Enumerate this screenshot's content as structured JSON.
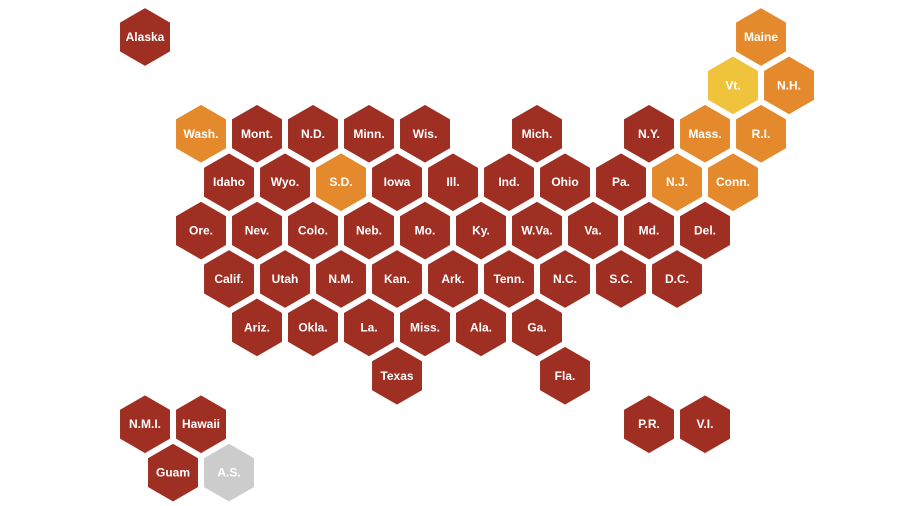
{
  "colors": {
    "high": "#9e2f22",
    "medium": "#e58a2c",
    "low": "#f0c33c",
    "no_data": "#cccccc",
    "outline": "#ffffff"
  },
  "tiles": [
    {
      "label": "Alaska",
      "row": 0,
      "col": 0,
      "level": "high"
    },
    {
      "label": "Maine",
      "row": 0,
      "col": 11,
      "level": "medium"
    },
    {
      "label": "Vt.",
      "row": 1,
      "col": 10,
      "level": "low"
    },
    {
      "label": "N.H.",
      "row": 1,
      "col": 11,
      "level": "medium"
    },
    {
      "label": "Wash.",
      "row": 2,
      "col": 1,
      "level": "medium"
    },
    {
      "label": "Mont.",
      "row": 2,
      "col": 2,
      "level": "high"
    },
    {
      "label": "N.D.",
      "row": 2,
      "col": 3,
      "level": "high"
    },
    {
      "label": "Minn.",
      "row": 2,
      "col": 4,
      "level": "high"
    },
    {
      "label": "Wis.",
      "row": 2,
      "col": 5,
      "level": "high"
    },
    {
      "label": "Mich.",
      "row": 2,
      "col": 7,
      "level": "high"
    },
    {
      "label": "N.Y.",
      "row": 2,
      "col": 9,
      "level": "high"
    },
    {
      "label": "Mass.",
      "row": 2,
      "col": 10,
      "level": "medium"
    },
    {
      "label": "R.I.",
      "row": 2,
      "col": 11,
      "level": "medium"
    },
    {
      "label": "Idaho",
      "row": 3,
      "col": 1,
      "level": "high"
    },
    {
      "label": "Wyo.",
      "row": 3,
      "col": 2,
      "level": "high"
    },
    {
      "label": "S.D.",
      "row": 3,
      "col": 3,
      "level": "medium"
    },
    {
      "label": "Iowa",
      "row": 3,
      "col": 4,
      "level": "high"
    },
    {
      "label": "Ill.",
      "row": 3,
      "col": 5,
      "level": "high"
    },
    {
      "label": "Ind.",
      "row": 3,
      "col": 6,
      "level": "high"
    },
    {
      "label": "Ohio",
      "row": 3,
      "col": 7,
      "level": "high"
    },
    {
      "label": "Pa.",
      "row": 3,
      "col": 8,
      "level": "high"
    },
    {
      "label": "N.J.",
      "row": 3,
      "col": 9,
      "level": "medium"
    },
    {
      "label": "Conn.",
      "row": 3,
      "col": 10,
      "level": "medium"
    },
    {
      "label": "Ore.",
      "row": 4,
      "col": 1,
      "level": "high"
    },
    {
      "label": "Nev.",
      "row": 4,
      "col": 2,
      "level": "high"
    },
    {
      "label": "Colo.",
      "row": 4,
      "col": 3,
      "level": "high"
    },
    {
      "label": "Neb.",
      "row": 4,
      "col": 4,
      "level": "high"
    },
    {
      "label": "Mo.",
      "row": 4,
      "col": 5,
      "level": "high"
    },
    {
      "label": "Ky.",
      "row": 4,
      "col": 6,
      "level": "high"
    },
    {
      "label": "W.Va.",
      "row": 4,
      "col": 7,
      "level": "high"
    },
    {
      "label": "Va.",
      "row": 4,
      "col": 8,
      "level": "high"
    },
    {
      "label": "Md.",
      "row": 4,
      "col": 9,
      "level": "high"
    },
    {
      "label": "Del.",
      "row": 4,
      "col": 10,
      "level": "high"
    },
    {
      "label": "Calif.",
      "row": 5,
      "col": 1,
      "level": "high"
    },
    {
      "label": "Utah",
      "row": 5,
      "col": 2,
      "level": "high"
    },
    {
      "label": "N.M.",
      "row": 5,
      "col": 3,
      "level": "high"
    },
    {
      "label": "Kan.",
      "row": 5,
      "col": 4,
      "level": "high"
    },
    {
      "label": "Ark.",
      "row": 5,
      "col": 5,
      "level": "high"
    },
    {
      "label": "Tenn.",
      "row": 5,
      "col": 6,
      "level": "high"
    },
    {
      "label": "N.C.",
      "row": 5,
      "col": 7,
      "level": "high"
    },
    {
      "label": "S.C.",
      "row": 5,
      "col": 8,
      "level": "high"
    },
    {
      "label": "D.C.",
      "row": 5,
      "col": 9,
      "level": "high"
    },
    {
      "label": "Ariz.",
      "row": 6,
      "col": 2,
      "level": "high"
    },
    {
      "label": "Okla.",
      "row": 6,
      "col": 3,
      "level": "high"
    },
    {
      "label": "La.",
      "row": 6,
      "col": 4,
      "level": "high"
    },
    {
      "label": "Miss.",
      "row": 6,
      "col": 5,
      "level": "high"
    },
    {
      "label": "Ala.",
      "row": 6,
      "col": 6,
      "level": "high"
    },
    {
      "label": "Ga.",
      "row": 6,
      "col": 7,
      "level": "high"
    },
    {
      "label": "Texas",
      "row": 7,
      "col": 4,
      "level": "high"
    },
    {
      "label": "Fla.",
      "row": 7,
      "col": 7,
      "level": "high"
    },
    {
      "label": "N.M.I.",
      "row": 8,
      "col": 0,
      "level": "high"
    },
    {
      "label": "Hawaii",
      "row": 8,
      "col": 1,
      "level": "high"
    },
    {
      "label": "P.R.",
      "row": 8,
      "col": 9,
      "level": "high"
    },
    {
      "label": "V.I.",
      "row": 8,
      "col": 10,
      "level": "high"
    },
    {
      "label": "Guam",
      "row": 9,
      "col": 0,
      "level": "high"
    },
    {
      "label": "A.S.",
      "row": 9,
      "col": 1,
      "level": "no_data"
    }
  ]
}
